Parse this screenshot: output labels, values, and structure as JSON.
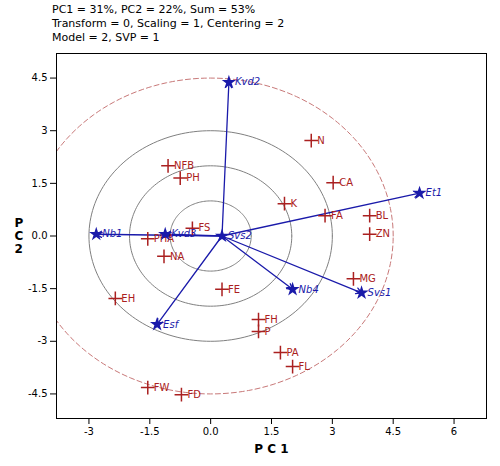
{
  "chart_data": {
    "type": "biplot",
    "title": "PC1 = 31%, PC2 = 22%, Sum = 53%\nTransform = 0, Scaling = 1, Centering = 2\nModel = 2, SVP = 1",
    "xlabel": "P C 1",
    "ylabel": "P\nC\n2",
    "xlim": [
      -3.8,
      6.8
    ],
    "ylim": [
      -5.2,
      5.2
    ],
    "xticks": [
      -3,
      -1.5,
      {
        "value": 0,
        "label": "0.0"
      },
      1.5,
      3,
      4.5,
      6
    ],
    "yticks": [
      -4.5,
      -3,
      -1.5,
      {
        "value": 0,
        "label": "0.0"
      },
      1.5,
      3,
      4.5
    ],
    "grid": false,
    "circles": [
      {
        "radius": 1.0,
        "color": "#808080",
        "line_style": "solid"
      },
      {
        "radius": 2.0,
        "color": "#808080",
        "line_style": "solid"
      },
      {
        "radius": 3.0,
        "color": "#808080",
        "line_style": "solid"
      },
      {
        "radius": 4.5,
        "color": "#c87878",
        "line_style": "dashed"
      }
    ],
    "arrows": {
      "from": [
        0.28,
        0.0
      ],
      "color": "#1a1aaa",
      "to": [
        [
          0.45,
          4.38
        ],
        [
          5.15,
          1.22
        ],
        [
          2.02,
          -1.52
        ],
        [
          3.72,
          -1.62
        ],
        [
          -1.32,
          -2.52
        ],
        [
          -2.82,
          0.05
        ],
        [
          -1.12,
          0.05
        ]
      ]
    },
    "series": [
      {
        "type": "scatter",
        "marker": "plus",
        "color": "#aa2020",
        "points": [
          {
            "label": "NFB",
            "x": -1.05,
            "y": 2.0
          },
          {
            "label": "PH",
            "x": -0.75,
            "y": 1.65
          },
          {
            "label": "FS",
            "x": -0.45,
            "y": 0.22
          },
          {
            "label": "PHA",
            "x": -1.55,
            "y": -0.08
          },
          {
            "label": "NA",
            "x": -1.15,
            "y": -0.58
          },
          {
            "label": "EH",
            "x": -2.35,
            "y": -1.78
          },
          {
            "label": "FE",
            "x": 0.28,
            "y": -1.52
          },
          {
            "label": "FH",
            "x": 1.18,
            "y": -2.38
          },
          {
            "label": "P",
            "x": 1.18,
            "y": -2.72
          },
          {
            "label": "PA",
            "x": 1.72,
            "y": -3.32
          },
          {
            "label": "FL",
            "x": 2.02,
            "y": -3.72
          },
          {
            "label": "FW",
            "x": -1.55,
            "y": -4.32
          },
          {
            "label": "FD",
            "x": -0.72,
            "y": -4.52
          },
          {
            "label": "N",
            "x": 2.48,
            "y": 2.72
          },
          {
            "label": "CA",
            "x": 3.02,
            "y": 1.52
          },
          {
            "label": "K",
            "x": 1.82,
            "y": 0.92
          },
          {
            "label": "FA",
            "x": 2.82,
            "y": 0.58
          },
          {
            "label": "BL",
            "x": 3.92,
            "y": 0.58
          },
          {
            "label": "ZN",
            "x": 3.92,
            "y": 0.05
          },
          {
            "label": "MG",
            "x": 3.52,
            "y": -1.22
          }
        ]
      },
      {
        "type": "scatter",
        "marker": "star",
        "color": "#1a1aaa",
        "points": [
          {
            "label": "Kvd2",
            "x": 0.45,
            "y": 4.38
          },
          {
            "label": "Et1",
            "x": 5.15,
            "y": 1.22
          },
          {
            "label": "Svs2",
            "x": 0.28,
            "y": 0.0
          },
          {
            "label": "Nb4",
            "x": 2.02,
            "y": -1.52
          },
          {
            "label": "Svs1",
            "x": 3.72,
            "y": -1.62
          },
          {
            "label": "Esf",
            "x": -1.32,
            "y": -2.52
          },
          {
            "label": "Nb1",
            "x": -2.82,
            "y": 0.05
          },
          {
            "label": "Kvd3",
            "x": -1.12,
            "y": 0.05
          }
        ]
      }
    ]
  }
}
